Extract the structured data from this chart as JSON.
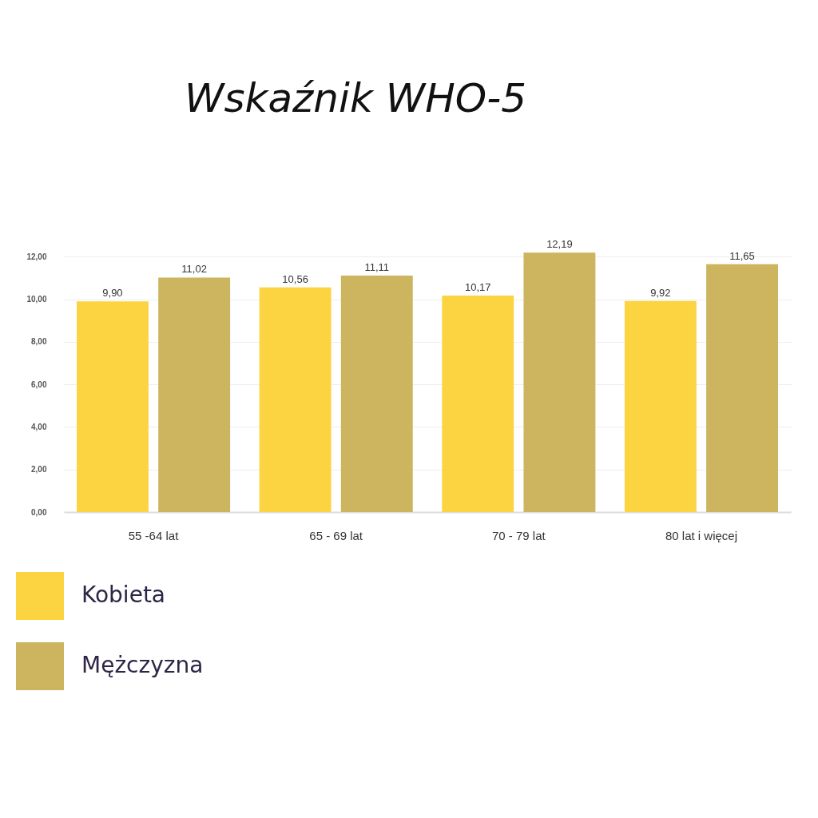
{
  "chart_data": {
    "type": "bar",
    "title": "Wskaźnik WHO-5",
    "categories": [
      "55 -64 lat",
      "65 - 69 lat",
      "70 - 79 lat",
      "80 lat i więcej"
    ],
    "series": [
      {
        "name": "Kobieta",
        "color": "#fcd441",
        "values": [
          9.9,
          10.56,
          10.17,
          9.92
        ],
        "value_labels": [
          "9,90",
          "10,56",
          "10,17",
          "9,92"
        ]
      },
      {
        "name": "Mężczyzna",
        "color": "#cdb45e",
        "values": [
          11.02,
          11.11,
          12.19,
          11.65
        ],
        "value_labels": [
          "11,02",
          "11,11",
          "12,19",
          "11,65"
        ]
      }
    ],
    "ylim": [
      0,
      12.2
    ],
    "yticks": [
      {
        "value": 0,
        "label": "0,00"
      },
      {
        "value": 2,
        "label": "2,00"
      },
      {
        "value": 4,
        "label": "4,00"
      },
      {
        "value": 6,
        "label": "6,00"
      },
      {
        "value": 8,
        "label": "8,00"
      },
      {
        "value": 10,
        "label": "10,00"
      },
      {
        "value": 12,
        "label": "12,00"
      }
    ],
    "grid": "y",
    "legend": "bottom left"
  }
}
